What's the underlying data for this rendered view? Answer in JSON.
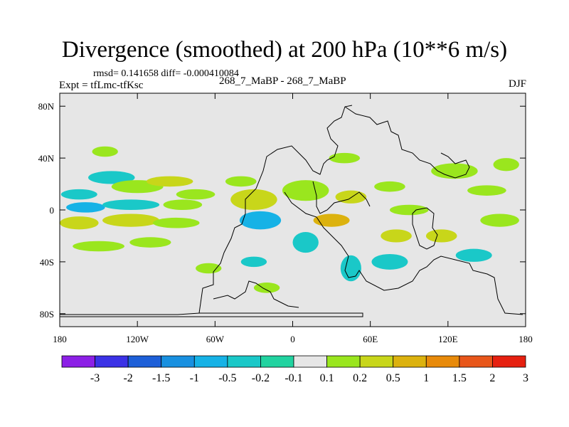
{
  "title": "Divergence (smoothed) at 200 hPa (10**6 m/s)",
  "stats_line": "rmsd= 0.141658  diff= -0.000410084",
  "experiment_label": "Expt = tfLmc-tfKsc",
  "comparison_label": "268_7_MaBP - 268_7_MaBP",
  "season_label": "DJF",
  "chart_data": {
    "type": "heatmap",
    "projection": "cylindrical equidistant (lon/lat)",
    "xlim": [
      -180,
      180
    ],
    "ylim": [
      -90,
      90
    ],
    "x_ticks": [
      {
        "value": -180,
        "label": "180"
      },
      {
        "value": -120,
        "label": "120W"
      },
      {
        "value": -60,
        "label": "60W"
      },
      {
        "value": 0,
        "label": "0"
      },
      {
        "value": 60,
        "label": "60E"
      },
      {
        "value": 120,
        "label": "120E"
      },
      {
        "value": 180,
        "label": "180"
      }
    ],
    "y_ticks": [
      {
        "value": 80,
        "label": "80N"
      },
      {
        "value": 40,
        "label": "40N"
      },
      {
        "value": 0,
        "label": "0"
      },
      {
        "value": -40,
        "label": "40S"
      },
      {
        "value": -80,
        "label": "80S"
      }
    ],
    "colorbar": {
      "levels": [
        "-3",
        "-2",
        "-1.5",
        "-1",
        "-0.5",
        "-0.2",
        "-0.1",
        "0.1",
        "0.2",
        "0.5",
        "1",
        "1.5",
        "2",
        "3"
      ],
      "colors": [
        "#8c1fe6",
        "#3b32e6",
        "#1d5fd8",
        "#1890e0",
        "#16b2e6",
        "#1ac8c8",
        "#21d3a0",
        "#e6e6e6",
        "#9ae61e",
        "#c8d61a",
        "#dcb20e",
        "#e88a0a",
        "#e8561a",
        "#e62010"
      ]
    },
    "colors": {
      "background_field": "#e6e6e6",
      "neg_small": "#21d3a0",
      "neg_mid": "#16b2e6",
      "pos_small": "#9ae61e",
      "pos_mid": "#c8d61a",
      "pos_large": "#dcb20e",
      "pos_xlarge": "#e88a0a"
    },
    "field_patches": [
      {
        "lon": -165,
        "lat": 12,
        "rlon": 14,
        "rlat": 4,
        "level": "-0.2"
      },
      {
        "lon": -140,
        "lat": 25,
        "rlon": 18,
        "rlat": 5,
        "level": "-0.2"
      },
      {
        "lon": -120,
        "lat": 18,
        "rlon": 20,
        "rlat": 5,
        "level": "0.2"
      },
      {
        "lon": -95,
        "lat": 22,
        "rlon": 18,
        "rlat": 4,
        "level": "0.5"
      },
      {
        "lon": -75,
        "lat": 12,
        "rlon": 15,
        "rlat": 4,
        "level": "0.2"
      },
      {
        "lon": -160,
        "lat": 2,
        "rlon": 15,
        "rlat": 4,
        "level": "-0.5"
      },
      {
        "lon": -125,
        "lat": 4,
        "rlon": 22,
        "rlat": 4,
        "level": "-0.2"
      },
      {
        "lon": -85,
        "lat": 4,
        "rlon": 15,
        "rlat": 4,
        "level": "0.2"
      },
      {
        "lon": -165,
        "lat": -10,
        "rlon": 15,
        "rlat": 5,
        "level": "0.5"
      },
      {
        "lon": -125,
        "lat": -8,
        "rlon": 22,
        "rlat": 5,
        "level": "0.5"
      },
      {
        "lon": -90,
        "lat": -10,
        "rlon": 18,
        "rlat": 4,
        "level": "0.2"
      },
      {
        "lon": -150,
        "lat": -28,
        "rlon": 20,
        "rlat": 4,
        "level": "0.2"
      },
      {
        "lon": -110,
        "lat": -25,
        "rlon": 16,
        "rlat": 4,
        "level": "0.2"
      },
      {
        "lon": -145,
        "lat": 45,
        "rlon": 10,
        "rlat": 4,
        "level": "0.2"
      },
      {
        "lon": -30,
        "lat": 8,
        "rlon": 18,
        "rlat": 8,
        "level": "0.5"
      },
      {
        "lon": -25,
        "lat": -8,
        "rlon": 16,
        "rlat": 7,
        "level": "-0.5"
      },
      {
        "lon": -40,
        "lat": 22,
        "rlon": 12,
        "rlat": 4,
        "level": "0.2"
      },
      {
        "lon": 10,
        "lat": 15,
        "rlon": 18,
        "rlat": 8,
        "level": "0.2"
      },
      {
        "lon": 30,
        "lat": -8,
        "rlon": 14,
        "rlat": 5,
        "level": "1"
      },
      {
        "lon": 45,
        "lat": 10,
        "rlon": 12,
        "rlat": 5,
        "level": "0.5"
      },
      {
        "lon": 10,
        "lat": -25,
        "rlon": 10,
        "rlat": 8,
        "level": "-0.2"
      },
      {
        "lon": 45,
        "lat": -45,
        "rlon": 8,
        "rlat": 10,
        "level": "-0.2"
      },
      {
        "lon": 40,
        "lat": 40,
        "rlon": 12,
        "rlat": 4,
        "level": "0.2"
      },
      {
        "lon": 75,
        "lat": 18,
        "rlon": 12,
        "rlat": 4,
        "level": "0.2"
      },
      {
        "lon": 90,
        "lat": 0,
        "rlon": 15,
        "rlat": 4,
        "level": "0.2"
      },
      {
        "lon": 80,
        "lat": -20,
        "rlon": 12,
        "rlat": 5,
        "level": "0.5"
      },
      {
        "lon": 115,
        "lat": -20,
        "rlon": 12,
        "rlat": 5,
        "level": "0.5"
      },
      {
        "lon": 125,
        "lat": 30,
        "rlon": 18,
        "rlat": 6,
        "level": "0.2"
      },
      {
        "lon": 150,
        "lat": 15,
        "rlon": 15,
        "rlat": 4,
        "level": "0.2"
      },
      {
        "lon": 160,
        "lat": -8,
        "rlon": 15,
        "rlat": 5,
        "level": "0.2"
      },
      {
        "lon": 165,
        "lat": 35,
        "rlon": 10,
        "rlat": 5,
        "level": "0.2"
      },
      {
        "lon": 140,
        "lat": -35,
        "rlon": 14,
        "rlat": 5,
        "level": "-0.2"
      },
      {
        "lon": 75,
        "lat": -40,
        "rlon": 14,
        "rlat": 6,
        "level": "-0.2"
      },
      {
        "lon": -65,
        "lat": -45,
        "rlon": 10,
        "rlat": 4,
        "level": "0.2"
      },
      {
        "lon": -30,
        "lat": -40,
        "rlon": 10,
        "rlat": 4,
        "level": "-0.2"
      },
      {
        "lon": -20,
        "lat": -60,
        "rlon": 10,
        "rlat": 4,
        "level": "0.2"
      }
    ]
  }
}
